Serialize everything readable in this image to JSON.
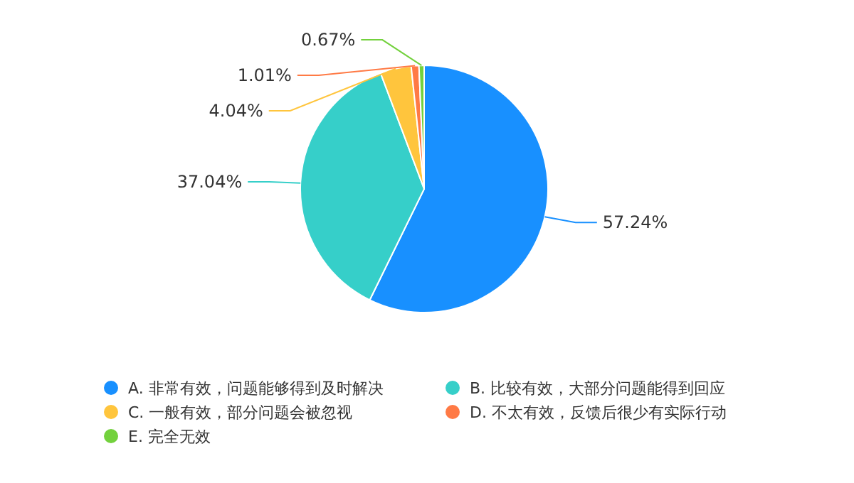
{
  "chart_data": {
    "type": "pie",
    "categories": [
      "A. 非常有效，问题能够得到及时解决",
      "B. 比较有效，大部分问题能得到回应",
      "C. 一般有效，部分问题会被忽视",
      "D. 不太有效，反馈后很少有实际行动",
      "E. 完全无效"
    ],
    "values": [
      57.24,
      37.04,
      4.04,
      1.01,
      0.67
    ],
    "colors": [
      "#1890ff",
      "#36cfc9",
      "#ffc53d",
      "#ff7a45",
      "#73d13d"
    ],
    "value_labels": [
      "57.24%",
      "37.04%",
      "4.04%",
      "1.01%",
      "0.67%"
    ],
    "legend": "bottom"
  }
}
